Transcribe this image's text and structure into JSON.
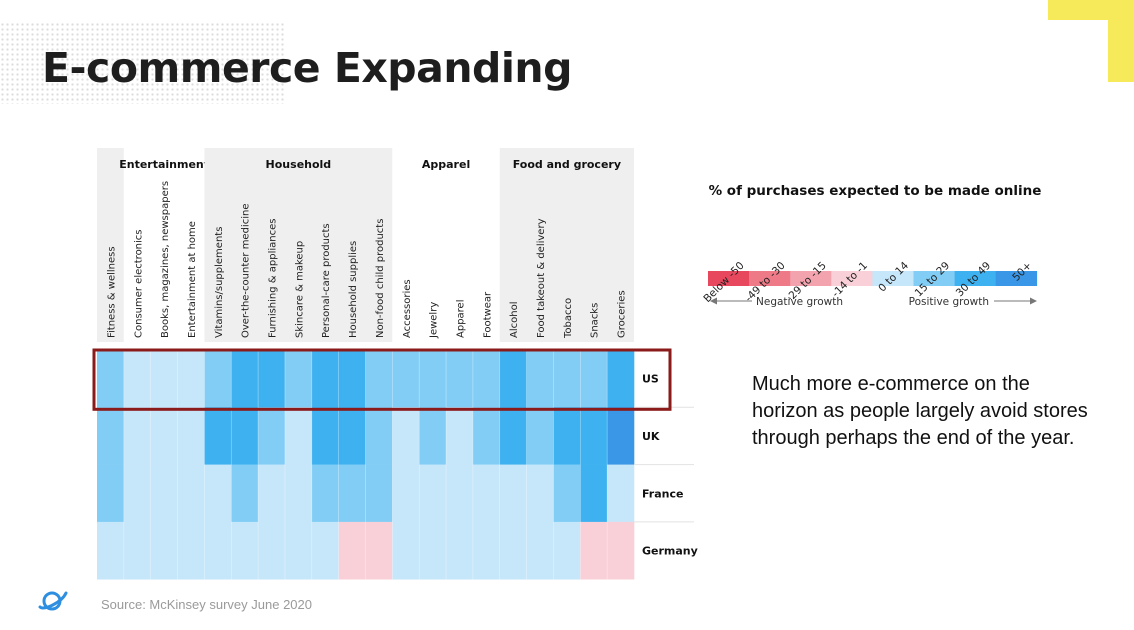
{
  "slide": {
    "title": "E-commerce Expanding",
    "callout": "Much more e-commerce on the horizon as people largely avoid stores through perhaps the end of the year.",
    "source": "Source: McKinsey survey June 2020",
    "logo_icon": "planet-icon",
    "accent_color": "#f7ea5a",
    "highlight_color": "#8b1a1a"
  },
  "chart_data": {
    "type": "heatmap",
    "title": "",
    "highlighted_row": "US",
    "groups": [
      {
        "label": "",
        "start": 0,
        "count": 1
      },
      {
        "label": "Entertainment",
        "start": 1,
        "count": 3
      },
      {
        "label": "Household",
        "start": 4,
        "count": 7
      },
      {
        "label": "Apparel",
        "start": 11,
        "count": 4
      },
      {
        "label": "Food and grocery",
        "start": 15,
        "count": 5
      }
    ],
    "categories": [
      "Fitness & wellness",
      "Consumer electronics",
      "Books, magazines, newspapers",
      "Entertainment at home",
      "Vitamins/supplements",
      "Over-the-counter medicine",
      "Furnishing & appliances",
      "Skincare & makeup",
      "Personal-care products",
      "Household supplies",
      "Non-food child products",
      "Accessories",
      "Jewelry",
      "Apparel",
      "Footwear",
      "Alcohol",
      "Food takeout & delivery",
      "Tobacco",
      "Snacks",
      "Groceries"
    ],
    "rows": [
      "US",
      "UK",
      "France",
      "Germany"
    ],
    "values": [
      [
        15,
        0,
        0,
        0,
        15,
        30,
        30,
        15,
        30,
        30,
        15,
        15,
        15,
        15,
        15,
        30,
        15,
        15,
        15,
        30
      ],
      [
        15,
        0,
        0,
        0,
        30,
        30,
        15,
        0,
        30,
        30,
        15,
        0,
        15,
        0,
        15,
        30,
        15,
        30,
        30,
        50
      ],
      [
        15,
        0,
        0,
        0,
        0,
        15,
        0,
        0,
        15,
        15,
        15,
        0,
        0,
        0,
        0,
        0,
        0,
        15,
        30,
        0
      ],
      [
        0,
        0,
        0,
        0,
        0,
        0,
        0,
        0,
        0,
        -14,
        -14,
        0,
        0,
        0,
        0,
        0,
        0,
        0,
        -14,
        -14
      ]
    ],
    "legend": {
      "title": "% of purchases expected to be made online",
      "bins": [
        {
          "label": "Below -50",
          "color": "#e8485e"
        },
        {
          "label": "-49 to -30",
          "color": "#ee7a87"
        },
        {
          "label": "-29 to -15",
          "color": "#f2a3ae"
        },
        {
          "label": "-14 to -1",
          "color": "#f9d0d7"
        },
        {
          "label": "0 to 14",
          "color": "#c6e6fa"
        },
        {
          "label": "15 to 29",
          "color": "#82cdf5"
        },
        {
          "label": "30 to 49",
          "color": "#3eb1f0"
        },
        {
          "label": "50+",
          "color": "#3a96e6"
        }
      ],
      "negative_label": "Negative growth",
      "positive_label": "Positive growth"
    }
  }
}
